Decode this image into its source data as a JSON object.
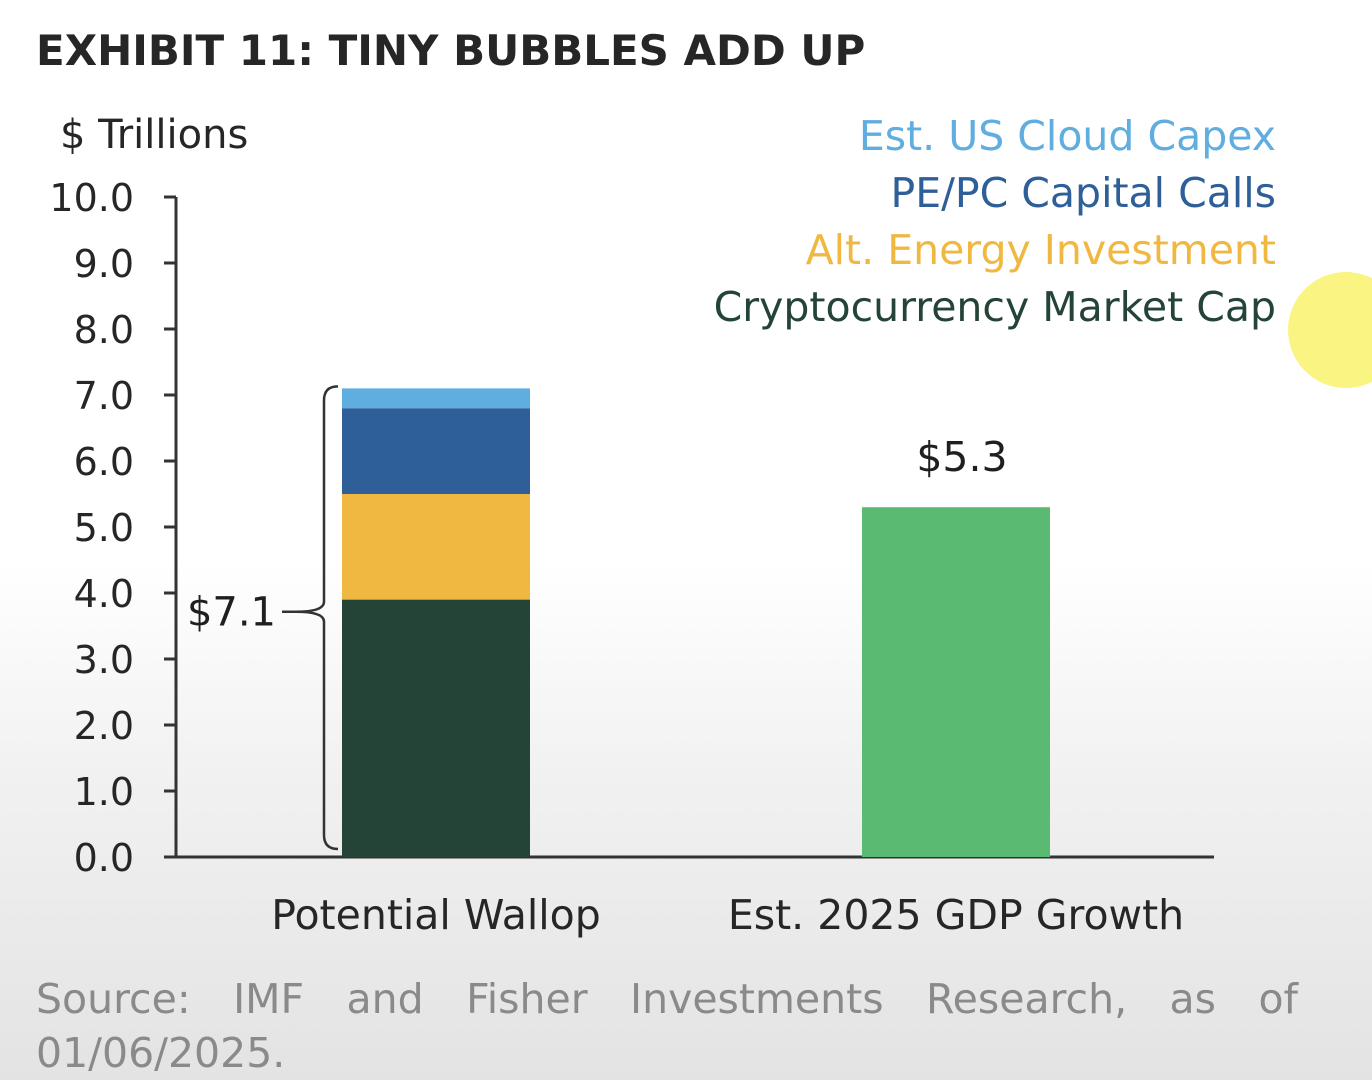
{
  "title": "EXHIBIT 11: TINY BUBBLES ADD UP",
  "source": "Source: IMF and Fisher Investments Research, as of 01/06/2025.",
  "chart_data": {
    "type": "bar",
    "stacked": true,
    "ylabel": "$ Trillions",
    "ylim": [
      0,
      10
    ],
    "yticks": [
      "0.0",
      "1.0",
      "2.0",
      "3.0",
      "4.0",
      "5.0",
      "6.0",
      "7.0",
      "8.0",
      "9.0",
      "10.0"
    ],
    "categories": [
      "Potential Wallop",
      "Est. 2025 GDP Growth"
    ],
    "series": [
      {
        "name": "Cryptocurrency Market Cap",
        "color": "#234436",
        "values": [
          3.9,
          0
        ]
      },
      {
        "name": "Alt. Energy Investment",
        "color": "#f0b840",
        "values": [
          1.6,
          0
        ]
      },
      {
        "name": "PE/PC Capital Calls",
        "color": "#2f5f98",
        "values": [
          1.3,
          0
        ]
      },
      {
        "name": "Est. US Cloud Capex",
        "color": "#60ade0",
        "values": [
          0.3,
          0
        ]
      },
      {
        "name": "",
        "color": "#5aba72",
        "values": [
          0,
          5.3
        ]
      }
    ],
    "annotations": [
      {
        "category": "Potential Wallop",
        "text": "$7.1",
        "total": 7.1,
        "style": "brace-left"
      },
      {
        "category": "Est. 2025 GDP Growth",
        "text": "$5.3",
        "total": 5.3,
        "style": "above-bar"
      }
    ],
    "legend_order": [
      "Est. US Cloud Capex",
      "PE/PC Capital Calls",
      "Alt. Energy Investment",
      "Cryptocurrency Market Cap"
    ],
    "legend_position": "top-right",
    "grid": false
  }
}
